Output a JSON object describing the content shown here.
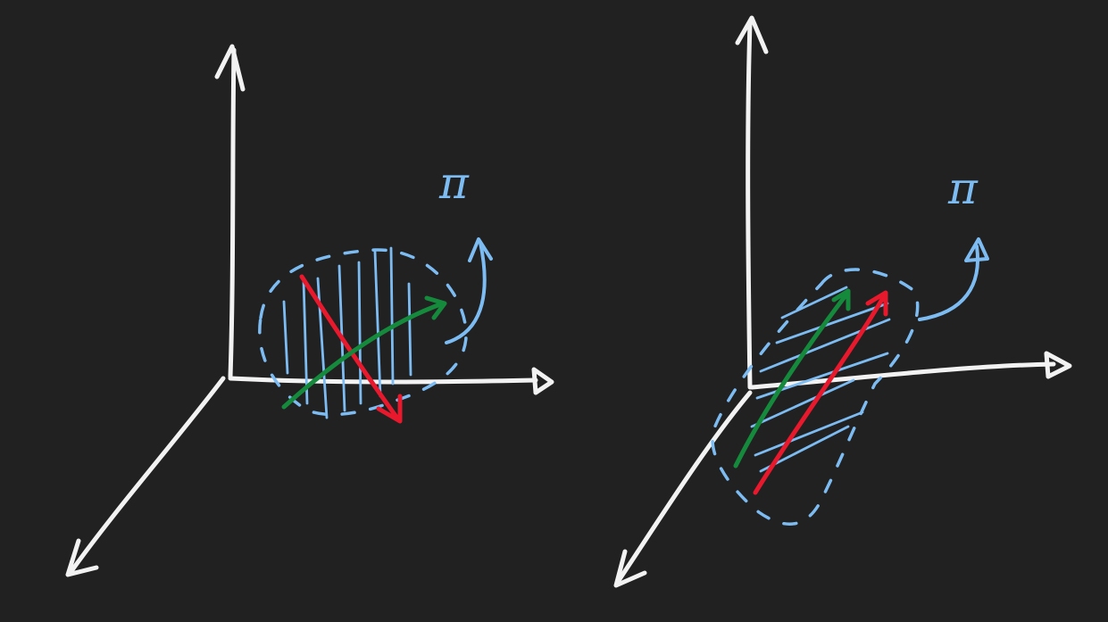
{
  "colors": {
    "background": "#212121",
    "axis": "#f2f2f2",
    "plane": "#7dbcf2",
    "vector_a": "#e8192c",
    "vector_b": "#158a3c"
  },
  "panels": [
    {
      "name": "left-sketch",
      "plane_label": "π",
      "rotation_arrow_icon": "curved-arrow-up-icon"
    },
    {
      "name": "right-sketch",
      "plane_label": "π",
      "rotation_arrow_icon": "curved-arrow-up-icon"
    }
  ]
}
